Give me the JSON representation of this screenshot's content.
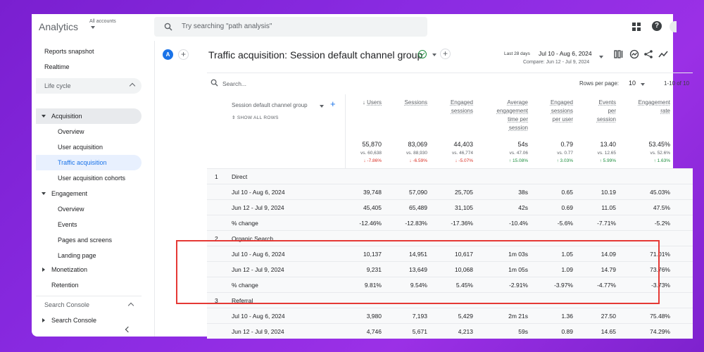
{
  "app": {
    "title": "Analytics",
    "accounts_label": "All accounts",
    "search_placeholder": "Try searching \"path analysis\""
  },
  "sidebar": {
    "top_items": [
      "Reports snapshot",
      "Realtime"
    ],
    "lifecycle_label": "Life cycle",
    "acquisition_label": "Acquisition",
    "acquisition_items": [
      "Overview",
      "User acquisition",
      "Traffic acquisition",
      "User acquisition cohorts"
    ],
    "engagement_label": "Engagement",
    "engagement_items": [
      "Overview",
      "Events",
      "Pages and screens",
      "Landing page"
    ],
    "monetization_label": "Monetization",
    "retention_label": "Retention",
    "search_console_section": "Search Console",
    "search_console_item": "Search Console",
    "active_item": "Traffic acquisition"
  },
  "header": {
    "avatar_letter": "A",
    "report_title": "Traffic acquisition: Session default channel group",
    "date_label": "Last 28 days",
    "date_range": "Jul 10 - Aug 6, 2024",
    "compare_range": "Compare: Jun 12 - Jul 9, 2024"
  },
  "table": {
    "search_placeholder": "Search...",
    "rows_per_page_label": "Rows per page:",
    "rows_per_page": "10",
    "pagination": "1-10 of 10",
    "dimension_header": "Session default channel group",
    "show_all_rows": "SHOW ALL ROWS",
    "columns": [
      {
        "l1": "Users",
        "l2": "",
        "l3": "",
        "l4": "",
        "sorted": true
      },
      {
        "l1": "Sessions",
        "l2": "",
        "l3": "",
        "l4": ""
      },
      {
        "l1": "Engaged",
        "l2": "sessions",
        "l3": "",
        "l4": ""
      },
      {
        "l1": "Average",
        "l2": "engagement",
        "l3": "time per",
        "l4": "session"
      },
      {
        "l1": "Engaged",
        "l2": "sessions",
        "l3": "per user",
        "l4": ""
      },
      {
        "l1": "Events",
        "l2": "per",
        "l3": "session",
        "l4": ""
      },
      {
        "l1": "Engagement",
        "l2": "rate",
        "l3": "",
        "l4": ""
      }
    ],
    "totals": [
      "55,870",
      "83,069",
      "44,403",
      "54s",
      "0.79",
      "13.40",
      "53.45%"
    ],
    "totals_vs": [
      "vs. 60,638",
      "vs. 88,930",
      "vs. 46,774",
      "vs. 47.06",
      "vs. 0.77",
      "vs. 12.65",
      "vs. 52.6%"
    ],
    "totals_change": [
      "↓ -7.86%",
      "↓ -6.59%",
      "↓ -5.07%",
      "↑ 15.08%",
      "↑ 3.03%",
      "↑ 5.99%",
      "↑ 1.63%"
    ],
    "totals_change_dir": [
      "neg",
      "neg",
      "neg",
      "pos",
      "pos",
      "pos",
      "pos"
    ],
    "groups": [
      {
        "num": "1",
        "name": "Direct",
        "rows": [
          {
            "label": "Jul 10 - Aug 6, 2024",
            "values": [
              "39,748",
              "57,090",
              "25,705",
              "38s",
              "0.65",
              "10.19",
              "45.03%"
            ]
          },
          {
            "label": "Jun 12 - Jul 9, 2024",
            "values": [
              "45,405",
              "65,489",
              "31,105",
              "42s",
              "0.69",
              "11.05",
              "47.5%"
            ]
          },
          {
            "label": "% change",
            "values": [
              "-12.46%",
              "-12.83%",
              "-17.36%",
              "-10.4%",
              "-5.6%",
              "-7.71%",
              "-5.2%"
            ]
          }
        ]
      },
      {
        "num": "2",
        "name": "Organic Search",
        "rows": [
          {
            "label": "Jul 10 - Aug 6, 2024",
            "values": [
              "10,137",
              "14,951",
              "10,617",
              "1m 03s",
              "1.05",
              "14.09",
              "71.01%"
            ]
          },
          {
            "label": "Jun 12 - Jul 9, 2024",
            "values": [
              "9,231",
              "13,649",
              "10,068",
              "1m 05s",
              "1.09",
              "14.79",
              "73.76%"
            ]
          },
          {
            "label": "% change",
            "values": [
              "9.81%",
              "9.54%",
              "5.45%",
              "-2.91%",
              "-3.97%",
              "-4.77%",
              "-3.73%"
            ]
          }
        ]
      },
      {
        "num": "3",
        "name": "Referral",
        "rows": [
          {
            "label": "Jul 10 - Aug 6, 2024",
            "values": [
              "3,980",
              "7,193",
              "5,429",
              "2m 21s",
              "1.36",
              "27.50",
              "75.48%"
            ]
          },
          {
            "label": "Jun 12 - Jul 9, 2024",
            "values": [
              "4,746",
              "5,671",
              "4,213",
              "59s",
              "0.89",
              "14.65",
              "74.29%"
            ]
          }
        ]
      }
    ]
  },
  "colors": {
    "accent": "#1a73e8",
    "highlight_border": "#e53935",
    "negative": "#d93025",
    "positive": "#1e8e3e"
  }
}
